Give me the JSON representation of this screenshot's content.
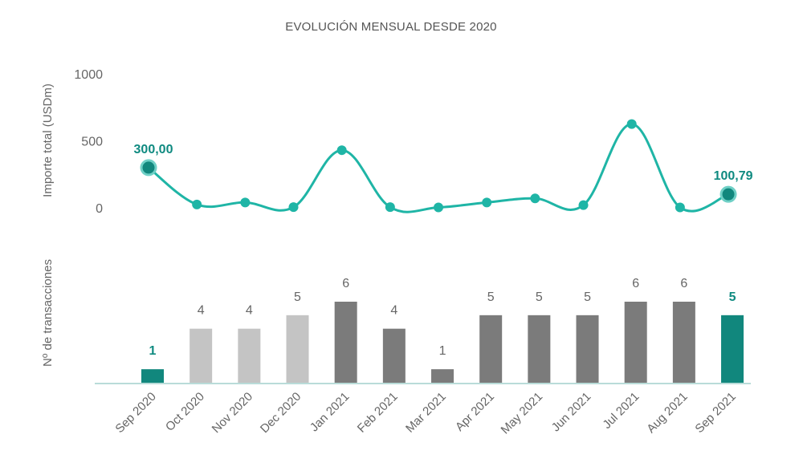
{
  "chart_data": [
    {
      "type": "line",
      "title": "EVOLUCIÓN MENSUAL DESDE 2020",
      "ylabel": "Importe total (USDm)",
      "ylim": [
        0,
        1000
      ],
      "yticks": [
        0,
        500,
        1000
      ],
      "grid": false,
      "categories": [
        "Sep 2020",
        "Oct 2020",
        "Nov 2020",
        "Dec 2020",
        "Jan 2021",
        "Feb 2021",
        "Mar 2021",
        "Apr 2021",
        "May 2021",
        "Jun 2021",
        "Jul 2021",
        "Aug 2021",
        "Sep 2021"
      ],
      "values": [
        300.0,
        25,
        40,
        5,
        430,
        5,
        3,
        40,
        70,
        20,
        625,
        3,
        100.79
      ],
      "labeled_points": [
        {
          "index": 0,
          "label": "300,00"
        },
        {
          "index": 12,
          "label": "100,79"
        }
      ],
      "color": "#1fb5a6",
      "highlight_color": "#11877d"
    },
    {
      "type": "bar",
      "ylabel": "Nº de transacciones",
      "categories": [
        "Sep 2020",
        "Oct 2020",
        "Nov 2020",
        "Dec 2020",
        "Jan 2021",
        "Feb 2021",
        "Mar 2021",
        "Apr 2021",
        "May 2021",
        "Jun 2021",
        "Jul 2021",
        "Aug 2021",
        "Sep 2021"
      ],
      "values": [
        1,
        4,
        4,
        5,
        6,
        4,
        1,
        5,
        5,
        5,
        6,
        6,
        5
      ],
      "value_labels": [
        "1",
        "4",
        "4",
        "5",
        "6",
        "4",
        "1",
        "5",
        "5",
        "5",
        "6",
        "6",
        "5"
      ],
      "ylim": [
        0,
        6
      ],
      "colors": [
        "#11877d",
        "#c4c4c4",
        "#c4c4c4",
        "#c4c4c4",
        "#7b7b7b",
        "#7b7b7b",
        "#7b7b7b",
        "#7b7b7b",
        "#7b7b7b",
        "#7b7b7b",
        "#7b7b7b",
        "#7b7b7b",
        "#11877d"
      ],
      "accent_color": "#11877d",
      "axis_color": "#b9dcd9"
    }
  ]
}
